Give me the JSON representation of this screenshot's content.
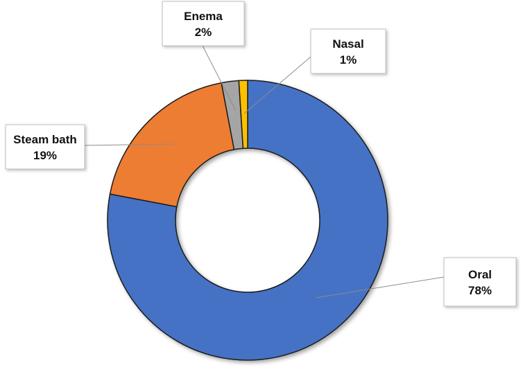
{
  "chart_data": {
    "type": "pie",
    "donut": true,
    "title": "",
    "categories": [
      "Oral",
      "Steam bath",
      "Enema",
      "Nasal"
    ],
    "values": [
      78,
      19,
      2,
      1
    ],
    "value_labels": [
      "78%",
      "19%",
      "2%",
      "1%"
    ],
    "colors": [
      "#4472C4",
      "#ED7D31",
      "#A5A5A5",
      "#FFC000"
    ],
    "legend": "none",
    "data_label_style": "callout boxes with leader lines"
  }
}
